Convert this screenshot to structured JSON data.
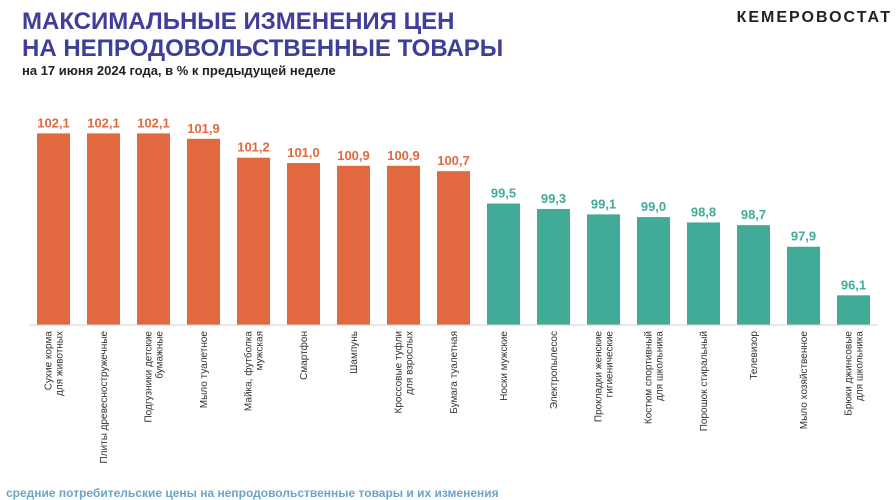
{
  "header": {
    "title_line1": "МАКСИМАЛЬНЫЕ ИЗМЕНЕНИЯ ЦЕН",
    "title_line2": "НА НЕПРОДОВОЛЬСТВЕННЫЕ ТОВАРЫ",
    "subtitle": "на 17 июня 2024 года, в % к предыдущей неделе",
    "logo_text": "КЕМЕРОВОСТАТ"
  },
  "footer": {
    "text": "средние потребительские цены на непродовольственные товары и их изменения"
  },
  "chart_data": {
    "type": "bar",
    "title": "МАКСИМАЛЬНЫЕ ИЗМЕНЕНИЯ ЦЕН НА НЕПРОДОВОЛЬСТВЕННЫЕ ТОВАРЫ",
    "xlabel": "",
    "ylabel": "",
    "grid": false,
    "legend": "none",
    "ylim": [
      95.0,
      102.3
    ],
    "colors": {
      "increase": "#e2683f",
      "decrease": "#41ab97"
    },
    "categories": [
      [
        "Сухие корма",
        "для животных"
      ],
      [
        "Плиты древесностружечные"
      ],
      [
        "Подгузники детские",
        "бумажные"
      ],
      [
        "Мыло туалетное"
      ],
      [
        "Майка, футболка",
        "мужская"
      ],
      [
        "Смартфон"
      ],
      [
        "Шампунь"
      ],
      [
        "Кроссовые туфли",
        "для взрослых"
      ],
      [
        "Бумага туалетная"
      ],
      [
        "Носки мужские"
      ],
      [
        "Электропылесос"
      ],
      [
        "Прокладки женские",
        "гигиенические"
      ],
      [
        "Костюм спортивный",
        "для школьника"
      ],
      [
        "Порошок стиральный"
      ],
      [
        "Телевизор"
      ],
      [
        "Мыло хозяйственное"
      ],
      [
        "Брюки джинсовые",
        "для школьника"
      ]
    ],
    "values": [
      102.1,
      102.1,
      102.1,
      101.9,
      101.2,
      101.0,
      100.9,
      100.9,
      100.7,
      99.5,
      99.3,
      99.1,
      99.0,
      98.8,
      98.7,
      97.9,
      96.1
    ],
    "value_labels": [
      "102,1",
      "102,1",
      "102,1",
      "101,9",
      "101,2",
      "101,0",
      "100,9",
      "100,9",
      "100,7",
      "99,5",
      "99,3",
      "99,1",
      "99,0",
      "98,8",
      "98,7",
      "97,9",
      "96,1"
    ]
  }
}
